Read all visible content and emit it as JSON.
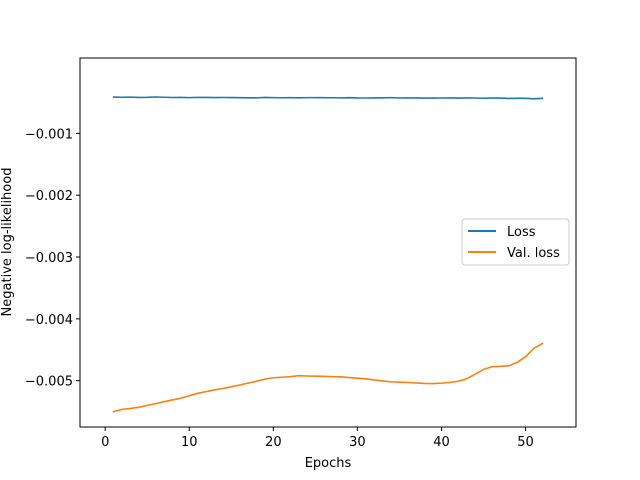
{
  "chart_data": {
    "type": "line",
    "title": "",
    "xlabel": "Epochs",
    "ylabel": "Negative log-likelihood",
    "xlim": [
      -3,
      56
    ],
    "ylim": [
      -0.00575,
      0.00022
    ],
    "xticks": [
      0,
      10,
      20,
      30,
      40,
      50
    ],
    "yticks": [
      -0.005,
      -0.004,
      -0.003,
      -0.002,
      -0.001
    ],
    "ytick_labels": [
      "−0.005",
      "−0.004",
      "−0.003",
      "−0.002",
      "−0.001"
    ],
    "grid": false,
    "legend_position": "center-right",
    "x": [
      1,
      2,
      3,
      4,
      5,
      6,
      7,
      8,
      9,
      10,
      11,
      12,
      13,
      14,
      15,
      16,
      17,
      18,
      19,
      20,
      21,
      22,
      23,
      24,
      25,
      26,
      27,
      28,
      29,
      30,
      31,
      32,
      33,
      34,
      35,
      36,
      37,
      38,
      39,
      40,
      41,
      42,
      43,
      44,
      45,
      46,
      47,
      48,
      49,
      50,
      51,
      52
    ],
    "series": [
      {
        "name": "Loss",
        "color": "#1f77b4",
        "values": [
          -0.000412,
          -0.000415,
          -0.000413,
          -0.000418,
          -0.000416,
          -0.000411,
          -0.000415,
          -0.000419,
          -0.000418,
          -0.000421,
          -0.000417,
          -0.000418,
          -0.00042,
          -0.000419,
          -0.00042,
          -0.000422,
          -0.000424,
          -0.000425,
          -0.000418,
          -0.000421,
          -0.000423,
          -0.000421,
          -0.000424,
          -0.000421,
          -0.000421,
          -0.000422,
          -0.000423,
          -0.000425,
          -0.000422,
          -0.000426,
          -0.000427,
          -0.000426,
          -0.000424,
          -0.000421,
          -0.000427,
          -0.000426,
          -0.000426,
          -0.000428,
          -0.000428,
          -0.000427,
          -0.000426,
          -0.000428,
          -0.000426,
          -0.000427,
          -0.000431,
          -0.000429,
          -0.000428,
          -0.000435,
          -0.000432,
          -0.000432,
          -0.00044,
          -0.000433
        ]
      },
      {
        "name": "Val. loss",
        "color": "#ff7f0e",
        "values": [
          -0.005502,
          -0.005465,
          -0.00545,
          -0.005432,
          -0.0054,
          -0.005372,
          -0.00534,
          -0.005312,
          -0.005285,
          -0.005245,
          -0.005205,
          -0.005178,
          -0.00515,
          -0.005125,
          -0.0051,
          -0.00507,
          -0.00504,
          -0.00501,
          -0.004975,
          -0.004953,
          -0.004945,
          -0.004935,
          -0.00492,
          -0.004925,
          -0.004928,
          -0.00493,
          -0.004935,
          -0.004938,
          -0.00495,
          -0.00496,
          -0.00497,
          -0.00499,
          -0.005005,
          -0.00502,
          -0.005025,
          -0.00503,
          -0.005038,
          -0.005045,
          -0.005048,
          -0.00504,
          -0.005028,
          -0.00501,
          -0.00497,
          -0.004895,
          -0.00482,
          -0.004775,
          -0.004768,
          -0.00476,
          -0.004705,
          -0.004612,
          -0.004475,
          -0.0044
        ]
      }
    ]
  }
}
